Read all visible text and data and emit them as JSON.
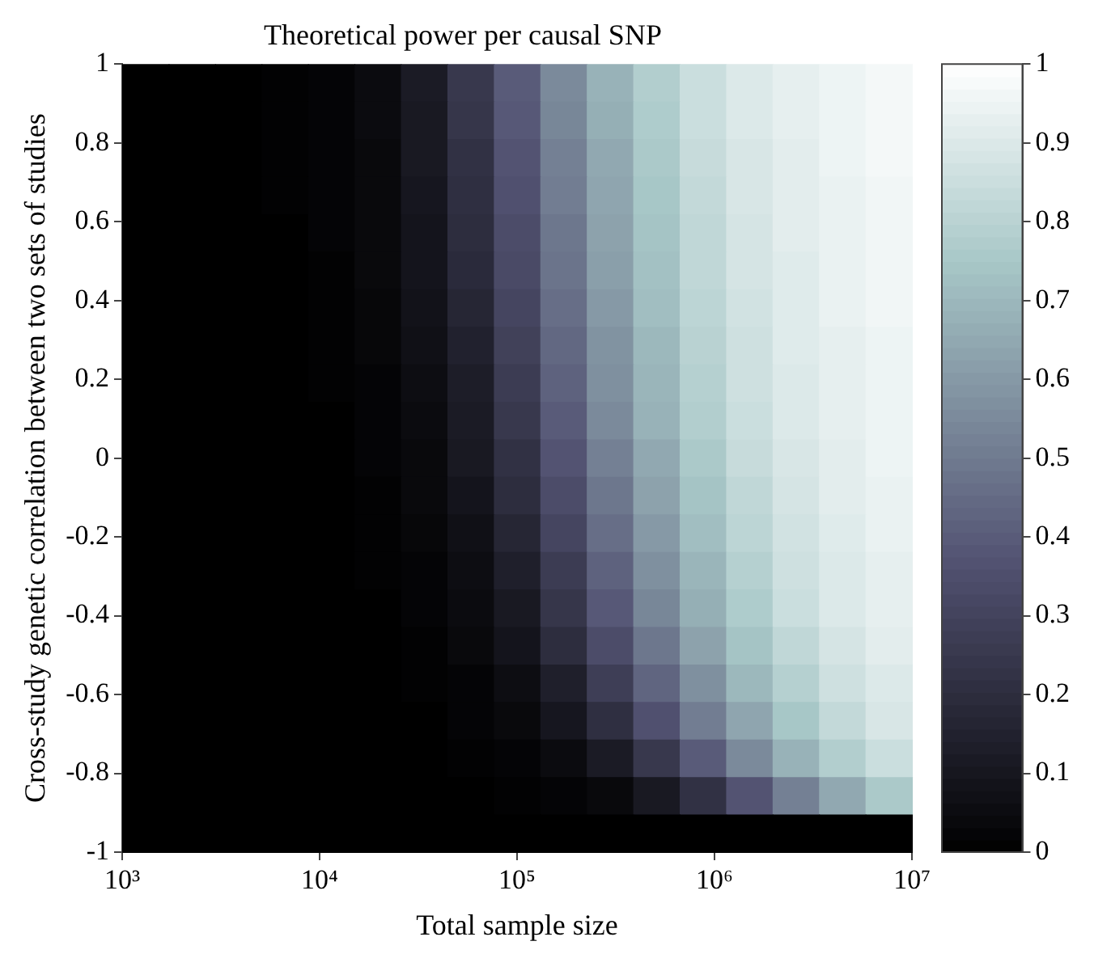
{
  "chart_data": {
    "type": "heatmap",
    "title": "Theoretical power per causal SNP",
    "xlabel": "Total sample size",
    "ylabel": "Cross-study genetic correlation between two sets of studies",
    "log": "x",
    "xlim": [
      1000,
      10000000
    ],
    "ylim": [
      -1,
      1
    ],
    "xticks": [
      {
        "value": 1000,
        "label": "10³"
      },
      {
        "value": 10000,
        "label": "10⁴"
      },
      {
        "value": 100000,
        "label": "10⁵"
      },
      {
        "value": 1000000,
        "label": "10⁶"
      },
      {
        "value": 10000000,
        "label": "10⁷"
      }
    ],
    "yticks": [
      -1,
      -0.8,
      -0.6,
      -0.4,
      -0.2,
      0,
      0.2,
      0.4,
      0.6,
      0.8,
      1
    ],
    "clim": [
      0,
      1
    ],
    "cticks": [
      0,
      0.1,
      0.2,
      0.3,
      0.4,
      0.5,
      0.6,
      0.7,
      0.8,
      0.9,
      1
    ],
    "grid": false,
    "cells": [
      [
        0,
        0,
        0,
        0.01,
        0.02,
        0.05,
        0.12,
        0.25,
        0.4,
        0.55,
        0.68,
        0.78,
        0.85,
        0.9,
        0.93,
        0.95,
        0.97
      ],
      [
        0,
        0,
        0,
        0.01,
        0.02,
        0.05,
        0.11,
        0.24,
        0.39,
        0.54,
        0.67,
        0.77,
        0.85,
        0.9,
        0.93,
        0.95,
        0.97
      ],
      [
        0,
        0,
        0,
        0.01,
        0.02,
        0.04,
        0.11,
        0.22,
        0.37,
        0.52,
        0.65,
        0.76,
        0.84,
        0.89,
        0.92,
        0.95,
        0.97
      ],
      [
        0,
        0,
        0,
        0.01,
        0.02,
        0.04,
        0.1,
        0.21,
        0.36,
        0.51,
        0.64,
        0.75,
        0.83,
        0.89,
        0.92,
        0.94,
        0.96
      ],
      [
        0,
        0,
        0,
        0,
        0.02,
        0.04,
        0.09,
        0.2,
        0.34,
        0.49,
        0.63,
        0.74,
        0.82,
        0.88,
        0.92,
        0.94,
        0.96
      ],
      [
        0,
        0,
        0,
        0,
        0.01,
        0.04,
        0.09,
        0.19,
        0.33,
        0.48,
        0.62,
        0.73,
        0.82,
        0.88,
        0.91,
        0.94,
        0.96
      ],
      [
        0,
        0,
        0,
        0,
        0.01,
        0.03,
        0.08,
        0.17,
        0.31,
        0.46,
        0.6,
        0.72,
        0.81,
        0.87,
        0.91,
        0.94,
        0.96
      ],
      [
        0,
        0,
        0,
        0,
        0.01,
        0.03,
        0.07,
        0.15,
        0.29,
        0.44,
        0.58,
        0.7,
        0.8,
        0.86,
        0.91,
        0.93,
        0.95
      ],
      [
        0,
        0,
        0,
        0,
        0.01,
        0.02,
        0.06,
        0.13,
        0.27,
        0.42,
        0.57,
        0.69,
        0.79,
        0.86,
        0.9,
        0.93,
        0.95
      ],
      [
        0,
        0,
        0,
        0,
        0,
        0.02,
        0.05,
        0.12,
        0.25,
        0.4,
        0.55,
        0.68,
        0.78,
        0.85,
        0.9,
        0.93,
        0.95
      ],
      [
        0,
        0,
        0,
        0,
        0,
        0.02,
        0.04,
        0.11,
        0.22,
        0.37,
        0.52,
        0.65,
        0.76,
        0.84,
        0.89,
        0.92,
        0.95
      ],
      [
        0,
        0,
        0,
        0,
        0,
        0.01,
        0.04,
        0.09,
        0.2,
        0.34,
        0.49,
        0.63,
        0.74,
        0.82,
        0.88,
        0.92,
        0.94
      ],
      [
        0,
        0,
        0,
        0,
        0,
        0.01,
        0.03,
        0.07,
        0.17,
        0.31,
        0.46,
        0.6,
        0.72,
        0.81,
        0.87,
        0.91,
        0.94
      ],
      [
        0,
        0,
        0,
        0,
        0,
        0.01,
        0.02,
        0.06,
        0.14,
        0.27,
        0.42,
        0.57,
        0.69,
        0.79,
        0.86,
        0.9,
        0.93
      ],
      [
        0,
        0,
        0,
        0,
        0,
        0,
        0.02,
        0.05,
        0.11,
        0.24,
        0.39,
        0.54,
        0.67,
        0.77,
        0.85,
        0.9,
        0.93
      ],
      [
        0,
        0,
        0,
        0,
        0,
        0,
        0.01,
        0.04,
        0.09,
        0.2,
        0.34,
        0.49,
        0.63,
        0.74,
        0.82,
        0.88,
        0.92
      ],
      [
        0,
        0,
        0,
        0,
        0,
        0,
        0.01,
        0.02,
        0.06,
        0.14,
        0.28,
        0.43,
        0.57,
        0.7,
        0.79,
        0.86,
        0.9
      ],
      [
        0,
        0,
        0,
        0,
        0,
        0,
        0,
        0.02,
        0.04,
        0.1,
        0.21,
        0.36,
        0.51,
        0.64,
        0.75,
        0.83,
        0.89
      ],
      [
        0,
        0,
        0,
        0,
        0,
        0,
        0,
        0.01,
        0.02,
        0.05,
        0.12,
        0.25,
        0.4,
        0.55,
        0.68,
        0.78,
        0.85
      ],
      [
        0,
        0,
        0,
        0,
        0,
        0,
        0,
        0,
        0.01,
        0.02,
        0.04,
        0.11,
        0.22,
        0.37,
        0.52,
        0.65,
        0.76
      ],
      [
        0,
        0,
        0,
        0,
        0,
        0,
        0,
        0,
        0,
        0,
        0,
        0,
        0,
        0,
        0,
        0,
        0
      ]
    ]
  }
}
